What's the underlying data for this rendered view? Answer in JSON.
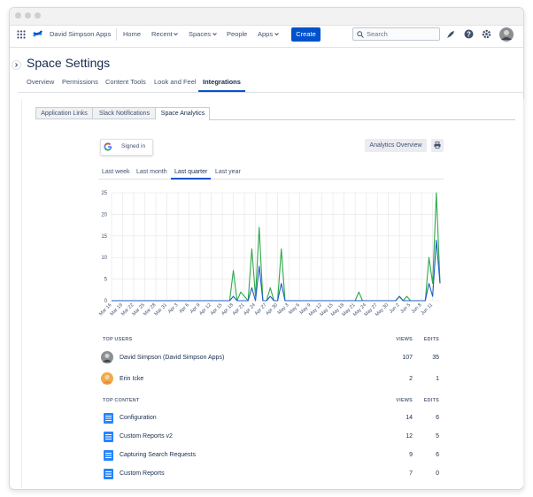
{
  "nav": {
    "site": "David Simpson Apps",
    "items": [
      "Home",
      "Recent",
      "Spaces",
      "People",
      "Apps"
    ],
    "create": "Create",
    "search": "Search"
  },
  "page": {
    "title": "Space Settings",
    "tabs": [
      "Overview",
      "Permissions",
      "Content Tools",
      "Look and Feel",
      "Integrations"
    ]
  },
  "integration_tabs": [
    "Application Links",
    "Slack Notifications",
    "Space Analytics"
  ],
  "analytics": {
    "signed_in": "Signed in",
    "overview_button": "Analytics Overview",
    "periods": [
      "Last week",
      "Last month",
      "Last quarter",
      "Last year"
    ]
  },
  "chart_data": {
    "type": "line",
    "categories": [
      "Mar 16",
      null,
      null,
      "Mar 19",
      null,
      null,
      "Mar 22",
      null,
      null,
      "Mar 25",
      null,
      null,
      "Mar 28",
      null,
      null,
      "Mar 31",
      null,
      null,
      "Apr 3",
      null,
      null,
      "Apr 6",
      null,
      null,
      "Apr 9",
      null,
      null,
      "Apr 12",
      null,
      null,
      "Apr 15",
      null,
      null,
      "Apr 18",
      null,
      null,
      "Apr 21",
      null,
      null,
      "Apr 24",
      null,
      null,
      "Apr 27",
      null,
      null,
      "Apr 30",
      null,
      null,
      "May 3",
      null,
      null,
      "May 6",
      null,
      null,
      "May 9",
      null,
      null,
      "May 12",
      null,
      null,
      "May 15",
      null,
      null,
      "May 18",
      null,
      null,
      "May 21",
      null,
      null,
      "May 24",
      null,
      null,
      "May 27",
      null,
      null,
      "May 30",
      null,
      null,
      "Jun 2",
      null,
      null,
      "Jun 5",
      null,
      null,
      "Jun 8",
      null,
      null,
      "Jun 11",
      null,
      null
    ],
    "series": [
      {
        "color": "#2ea84a",
        "values": [
          0,
          0,
          0,
          0,
          0,
          0,
          0,
          0,
          0,
          0,
          0,
          0,
          0,
          0,
          0,
          0,
          0,
          0,
          0,
          0,
          0,
          0,
          0,
          0,
          0,
          0,
          0,
          0,
          0,
          0,
          0,
          0,
          0,
          7,
          0,
          2,
          1,
          0,
          12,
          1,
          17,
          0,
          0,
          3,
          0,
          0,
          12,
          0,
          0,
          0,
          0,
          0,
          0,
          0,
          0,
          0,
          0,
          0,
          0,
          0,
          0,
          0,
          0,
          0,
          0,
          0,
          0,
          2,
          0,
          0,
          0,
          0,
          0,
          0,
          0,
          0,
          0,
          0,
          1,
          0,
          1,
          0,
          0,
          0,
          0,
          0,
          10,
          4,
          25,
          4
        ]
      },
      {
        "color": "#1d5fc4",
        "values": [
          0,
          0,
          0,
          0,
          0,
          0,
          0,
          0,
          0,
          0,
          0,
          0,
          0,
          0,
          0,
          0,
          0,
          0,
          0,
          0,
          0,
          0,
          0,
          0,
          0,
          0,
          0,
          0,
          0,
          0,
          0,
          0,
          0,
          1,
          0,
          0,
          0,
          0,
          3,
          0,
          8,
          0,
          0,
          1,
          0,
          0,
          4,
          0,
          0,
          0,
          0,
          0,
          0,
          0,
          0,
          0,
          0,
          0,
          0,
          0,
          0,
          0,
          0,
          0,
          0,
          0,
          0,
          0,
          0,
          0,
          0,
          0,
          0,
          0,
          0,
          0,
          0,
          0,
          1,
          0,
          0,
          0,
          0,
          0,
          0,
          0,
          4,
          1,
          14,
          4
        ]
      }
    ],
    "ylim": [
      0,
      25
    ],
    "yticks": [
      0,
      5,
      10,
      15,
      20,
      25
    ],
    "grid": true
  },
  "top_users": {
    "header": [
      "TOP USERS",
      "VIEWS",
      "EDITS"
    ],
    "rows": [
      [
        "David Simpson (David Simpson Apps)",
        107,
        35
      ],
      [
        "Erin Icke",
        2,
        1
      ]
    ]
  },
  "top_content": {
    "header": [
      "TOP CONTENT",
      "VIEWS",
      "EDITS"
    ],
    "rows": [
      [
        "Configuration",
        14,
        6
      ],
      [
        "Custom Reports v2",
        12,
        5
      ],
      [
        "Capturing Search Requests",
        9,
        6
      ],
      [
        "Custom Reports",
        7,
        0
      ]
    ]
  }
}
